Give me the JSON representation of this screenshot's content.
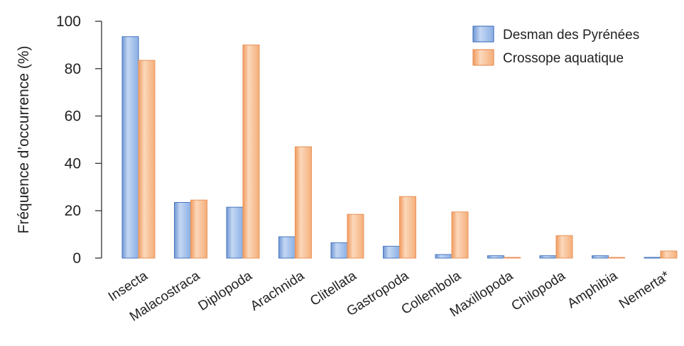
{
  "chart_data": {
    "type": "bar",
    "ylabel": "Fréquence d’occurrence (%)",
    "ylim": [
      0,
      100
    ],
    "yticks": [
      0,
      20,
      40,
      60,
      80,
      100
    ],
    "categories": [
      "Insecta",
      "Malacostraca",
      "Diplopoda",
      "Arachnida",
      "Clitellata",
      "Gastropoda",
      "Collembola",
      "Maxillopoda",
      "Chilopoda",
      "Amphibia",
      "Nemerta*"
    ],
    "series": [
      {
        "name": "Desman des Pyrénées",
        "color": "#8fb3e6",
        "values": [
          93.5,
          23.5,
          21.5,
          9,
          6.5,
          5,
          1.5,
          1,
          1,
          1,
          0.3
        ]
      },
      {
        "name": "Crossope aquatique",
        "color": "#f7b98a",
        "values": [
          83.5,
          24.5,
          90,
          47,
          18.5,
          26,
          19.5,
          0.3,
          9.5,
          0.3,
          3
        ]
      }
    ],
    "legend_position": "top-right",
    "grid": false
  }
}
